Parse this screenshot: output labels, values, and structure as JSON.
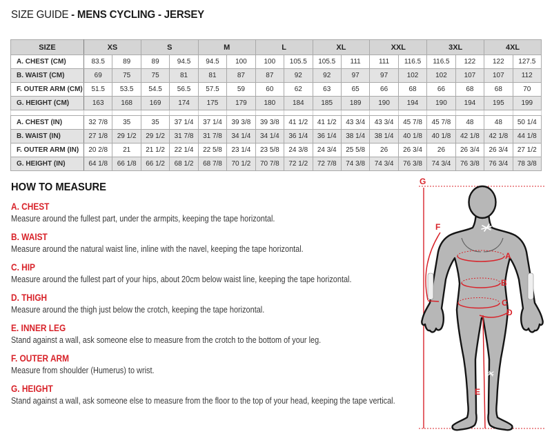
{
  "page": {
    "title_prefix": "SIZE GUIDE",
    "title_bold": "- MENS CYCLING - JERSEY"
  },
  "colors": {
    "accent_red": "#d8232a"
  },
  "table": {
    "corner_label": "SIZE",
    "sizes": [
      "XS",
      "S",
      "M",
      "L",
      "XL",
      "XXL",
      "3XL",
      "4XL"
    ],
    "cm_rows": [
      {
        "label": "A. CHEST (CM)",
        "values": [
          "83.5",
          "89",
          "89",
          "94.5",
          "94.5",
          "100",
          "100",
          "105.5",
          "105.5",
          "111",
          "111",
          "116.5",
          "116.5",
          "122",
          "122",
          "127.5"
        ]
      },
      {
        "label": "B. WAIST (CM)",
        "values": [
          "69",
          "75",
          "75",
          "81",
          "81",
          "87",
          "87",
          "92",
          "92",
          "97",
          "97",
          "102",
          "102",
          "107",
          "107",
          "112"
        ]
      },
      {
        "label": "F. OUTER ARM (CM)",
        "values": [
          "51.5",
          "53.5",
          "54.5",
          "56.5",
          "57.5",
          "59",
          "60",
          "62",
          "63",
          "65",
          "66",
          "68",
          "66",
          "68",
          "68",
          "70"
        ]
      },
      {
        "label": "G. HEIGHT (CM)",
        "values": [
          "163",
          "168",
          "169",
          "174",
          "175",
          "179",
          "180",
          "184",
          "185",
          "189",
          "190",
          "194",
          "190",
          "194",
          "195",
          "199"
        ]
      }
    ],
    "in_rows": [
      {
        "label": "A. CHEST (IN)",
        "values": [
          "32 7/8",
          "35",
          "35",
          "37 1/4",
          "37 1/4",
          "39 3/8",
          "39 3/8",
          "41 1/2",
          "41 1/2",
          "43 3/4",
          "43 3/4",
          "45 7/8",
          "45 7/8",
          "48",
          "48",
          "50 1/4"
        ]
      },
      {
        "label": "B. WAIST (IN)",
        "values": [
          "27 1/8",
          "29 1/2",
          "29 1/2",
          "31 7/8",
          "31 7/8",
          "34 1/4",
          "34 1/4",
          "36 1/4",
          "36 1/4",
          "38 1/4",
          "38 1/4",
          "40 1/8",
          "40 1/8",
          "42 1/8",
          "42 1/8",
          "44 1/8"
        ]
      },
      {
        "label": "F. OUTER ARM (IN)",
        "values": [
          "20 2/8",
          "21",
          "21 1/2",
          "22 1/4",
          "22 5/8",
          "23 1/4",
          "23 5/8",
          "24 3/8",
          "24 3/4",
          "25 5/8",
          "26",
          "26 3/4",
          "26",
          "26 3/4",
          "26 3/4",
          "27 1/2"
        ]
      },
      {
        "label": "G. HEIGHT (IN)",
        "values": [
          "64 1/8",
          "66 1/8",
          "66 1/2",
          "68 1/2",
          "68 7/8",
          "70 1/2",
          "70 7/8",
          "72 1/2",
          "72 7/8",
          "74 3/8",
          "74 3/4",
          "76 3/8",
          "74 3/4",
          "76 3/8",
          "76 3/4",
          "78 3/8"
        ]
      }
    ]
  },
  "measure": {
    "heading": "HOW TO MEASURE",
    "items": [
      {
        "label": "A. CHEST",
        "text": "Measure around the fullest part, under the armpits, keeping the tape horizontal."
      },
      {
        "label": "B. WAIST",
        "text": "Measure around the natural waist line, inline with the navel, keeping the tape horizontal."
      },
      {
        "label": "C. HIP",
        "text": "Measure around the fullest part of your hips, about 20cm below waist line, keeping the tape horizontal."
      },
      {
        "label": "D. THIGH",
        "text": "Measure around the thigh just below the crotch, keeping the tape horizontal."
      },
      {
        "label": "E. INNER LEG",
        "text": "Stand against a wall, ask someone else to measure from the crotch to the bottom of your leg."
      },
      {
        "label": "F. OUTER ARM",
        "text": "Measure from shoulder (Humerus) to wrist."
      },
      {
        "label": "G. HEIGHT",
        "text": "Stand against a wall, ask someone else to measure from the floor to the top of your head, keeping the tape vertical."
      }
    ]
  },
  "figure": {
    "labels": {
      "a": "A",
      "b": "B",
      "c": "C",
      "d": "D",
      "e": "E",
      "f": "F",
      "g": "G"
    }
  }
}
